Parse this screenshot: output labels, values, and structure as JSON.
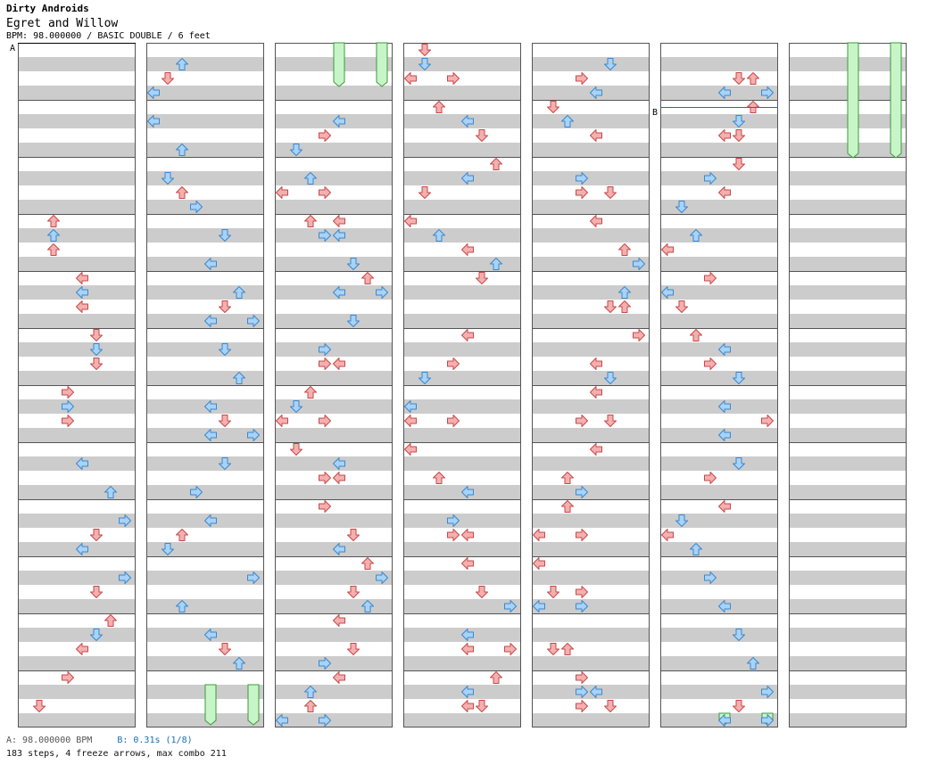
{
  "header": {
    "artist": "Dirty Androids",
    "title": "Egret and Willow",
    "info": "BPM: 98.000000 / BASIC DOUBLE / 6 feet"
  },
  "markers": [
    {
      "label": "A",
      "beat": 0,
      "color": "#000000"
    },
    {
      "label": "B",
      "beat": 244.5,
      "color": "#1a6fb0"
    }
  ],
  "footer": {
    "a_label": "A: 98.000000 BPM",
    "b_label": "B: 0.31s (1/8)",
    "stats": "183 steps, 4 freeze arrows, max combo 211"
  },
  "colors": {
    "note4": "#f4b0b0",
    "note4_stroke": "#c84848",
    "note8": "#a8d2f8",
    "note8_stroke": "#3a88cc",
    "freeze": "#c8f5c8",
    "freeze_stroke": "#3a9a3a",
    "band": "#cccccc",
    "border": "#555555"
  },
  "chart": {
    "columns": 7,
    "measures_per_column": 12,
    "beats_per_column": 48,
    "lanes": 8,
    "lane_icons": [
      "left-arrow-icon",
      "down-arrow-icon",
      "up-arrow-icon",
      "right-arrow-icon",
      "left-arrow-icon",
      "down-arrow-icon",
      "up-arrow-icon",
      "right-arrow-icon"
    ],
    "notes": [
      [
        0,
        2,
        12
      ],
      [
        0,
        2,
        13
      ],
      [
        0,
        2,
        14
      ],
      [
        0,
        4,
        16
      ],
      [
        0,
        4,
        17
      ],
      [
        0,
        4,
        18
      ],
      [
        0,
        5,
        20
      ],
      [
        0,
        5,
        21
      ],
      [
        0,
        5,
        22
      ],
      [
        0,
        3,
        24
      ],
      [
        0,
        3,
        25
      ],
      [
        0,
        3,
        26
      ],
      [
        0,
        4,
        29
      ],
      [
        0,
        6,
        31
      ],
      [
        0,
        7,
        33
      ],
      [
        0,
        5,
        34
      ],
      [
        0,
        4,
        35
      ],
      [
        0,
        7,
        37
      ],
      [
        0,
        5,
        38
      ],
      [
        0,
        6,
        40
      ],
      [
        0,
        5,
        41
      ],
      [
        0,
        4,
        42
      ],
      [
        0,
        3,
        44
      ],
      [
        0,
        1,
        46
      ],
      [
        1,
        2,
        1
      ],
      [
        1,
        1,
        2
      ],
      [
        1,
        0,
        3
      ],
      [
        1,
        0,
        5
      ],
      [
        1,
        2,
        7
      ],
      [
        1,
        1,
        9
      ],
      [
        1,
        2,
        10
      ],
      [
        1,
        3,
        11
      ],
      [
        1,
        5,
        13
      ],
      [
        1,
        4,
        15
      ],
      [
        1,
        6,
        17
      ],
      [
        1,
        5,
        18
      ],
      [
        1,
        4,
        19
      ],
      [
        1,
        7,
        19
      ],
      [
        1,
        5,
        21
      ],
      [
        1,
        6,
        23
      ],
      [
        1,
        4,
        25
      ],
      [
        1,
        5,
        26
      ],
      [
        1,
        4,
        27
      ],
      [
        1,
        7,
        27
      ],
      [
        1,
        5,
        29
      ],
      [
        1,
        3,
        31
      ],
      [
        1,
        4,
        33
      ],
      [
        1,
        2,
        34
      ],
      [
        1,
        1,
        35
      ],
      [
        1,
        7,
        37
      ],
      [
        1,
        2,
        39
      ],
      [
        1,
        4,
        41
      ],
      [
        1,
        5,
        42
      ],
      [
        1,
        6,
        43
      ],
      [
        2,
        4,
        5
      ],
      [
        2,
        3,
        6
      ],
      [
        2,
        1,
        7
      ],
      [
        2,
        2,
        9
      ],
      [
        2,
        0,
        10
      ],
      [
        2,
        3,
        10
      ],
      [
        2,
        2,
        12
      ],
      [
        2,
        4,
        12
      ],
      [
        2,
        3,
        13
      ],
      [
        2,
        4,
        13
      ],
      [
        2,
        5,
        15
      ],
      [
        2,
        6,
        16
      ],
      [
        2,
        4,
        17
      ],
      [
        2,
        7,
        17
      ],
      [
        2,
        5,
        19
      ],
      [
        2,
        3,
        21
      ],
      [
        2,
        3,
        22
      ],
      [
        2,
        4,
        22
      ],
      [
        2,
        2,
        24
      ],
      [
        2,
        1,
        25
      ],
      [
        2,
        0,
        26
      ],
      [
        2,
        3,
        26
      ],
      [
        2,
        1,
        28
      ],
      [
        2,
        4,
        29
      ],
      [
        2,
        3,
        30
      ],
      [
        2,
        4,
        30
      ],
      [
        2,
        3,
        32
      ],
      [
        2,
        5,
        34
      ],
      [
        2,
        4,
        35
      ],
      [
        2,
        6,
        36
      ],
      [
        2,
        7,
        37
      ],
      [
        2,
        5,
        38
      ],
      [
        2,
        6,
        39
      ],
      [
        2,
        4,
        40
      ],
      [
        2,
        5,
        42
      ],
      [
        2,
        3,
        43
      ],
      [
        2,
        4,
        44
      ],
      [
        2,
        2,
        45
      ],
      [
        2,
        2,
        46
      ],
      [
        2,
        0,
        47
      ],
      [
        2,
        3,
        47
      ],
      [
        3,
        1,
        0
      ],
      [
        3,
        1,
        1
      ],
      [
        3,
        0,
        2
      ],
      [
        3,
        3,
        2
      ],
      [
        3,
        2,
        4
      ],
      [
        3,
        4,
        5
      ],
      [
        3,
        5,
        6
      ],
      [
        3,
        6,
        8
      ],
      [
        3,
        4,
        9
      ],
      [
        3,
        1,
        10
      ],
      [
        3,
        0,
        12
      ],
      [
        3,
        2,
        13
      ],
      [
        3,
        4,
        14
      ],
      [
        3,
        6,
        15
      ],
      [
        3,
        5,
        16
      ],
      [
        3,
        4,
        20
      ],
      [
        3,
        3,
        22
      ],
      [
        3,
        1,
        23
      ],
      [
        3,
        0,
        25
      ],
      [
        3,
        0,
        26
      ],
      [
        3,
        3,
        26
      ],
      [
        3,
        0,
        28
      ],
      [
        3,
        2,
        30
      ],
      [
        3,
        4,
        31
      ],
      [
        3,
        3,
        33
      ],
      [
        3,
        3,
        34
      ],
      [
        3,
        4,
        34
      ],
      [
        3,
        4,
        36
      ],
      [
        3,
        5,
        38
      ],
      [
        3,
        7,
        39
      ],
      [
        3,
        4,
        41
      ],
      [
        3,
        4,
        42
      ],
      [
        3,
        7,
        42
      ],
      [
        3,
        6,
        44
      ],
      [
        3,
        4,
        45
      ],
      [
        3,
        4,
        46
      ],
      [
        3,
        5,
        46
      ],
      [
        4,
        5,
        1
      ],
      [
        4,
        3,
        2
      ],
      [
        4,
        4,
        3
      ],
      [
        4,
        1,
        4
      ],
      [
        4,
        2,
        5
      ],
      [
        4,
        4,
        6
      ],
      [
        4,
        3,
        9
      ],
      [
        4,
        3,
        10
      ],
      [
        4,
        5,
        10
      ],
      [
        4,
        4,
        12
      ],
      [
        4,
        6,
        14
      ],
      [
        4,
        7,
        15
      ],
      [
        4,
        6,
        17
      ],
      [
        4,
        5,
        18
      ],
      [
        4,
        6,
        18
      ],
      [
        4,
        7,
        20
      ],
      [
        4,
        4,
        22
      ],
      [
        4,
        5,
        23
      ],
      [
        4,
        4,
        24
      ],
      [
        4,
        3,
        26
      ],
      [
        4,
        5,
        26
      ],
      [
        4,
        4,
        28
      ],
      [
        4,
        2,
        30
      ],
      [
        4,
        3,
        31
      ],
      [
        4,
        2,
        32
      ],
      [
        4,
        0,
        34
      ],
      [
        4,
        3,
        34
      ],
      [
        4,
        0,
        36
      ],
      [
        4,
        1,
        38
      ],
      [
        4,
        3,
        38
      ],
      [
        4,
        0,
        39
      ],
      [
        4,
        3,
        39
      ],
      [
        4,
        1,
        42
      ],
      [
        4,
        2,
        42
      ],
      [
        4,
        3,
        44
      ],
      [
        4,
        3,
        45
      ],
      [
        4,
        4,
        45
      ],
      [
        4,
        3,
        46
      ],
      [
        4,
        5,
        46
      ],
      [
        5,
        5,
        2
      ],
      [
        5,
        6,
        2
      ],
      [
        5,
        4,
        3
      ],
      [
        5,
        7,
        3
      ],
      [
        5,
        6,
        4
      ],
      [
        5,
        5,
        5
      ],
      [
        5,
        4,
        6
      ],
      [
        5,
        5,
        6
      ],
      [
        5,
        5,
        8
      ],
      [
        5,
        3,
        9
      ],
      [
        5,
        4,
        10
      ],
      [
        5,
        1,
        11
      ],
      [
        5,
        2,
        13
      ],
      [
        5,
        0,
        14
      ],
      [
        5,
        3,
        16
      ],
      [
        5,
        0,
        17
      ],
      [
        5,
        1,
        18
      ],
      [
        5,
        2,
        20
      ],
      [
        5,
        4,
        21
      ],
      [
        5,
        3,
        22
      ],
      [
        5,
        5,
        23
      ],
      [
        5,
        4,
        25
      ],
      [
        5,
        7,
        26
      ],
      [
        5,
        4,
        27
      ],
      [
        5,
        5,
        29
      ],
      [
        5,
        3,
        30
      ],
      [
        5,
        4,
        32
      ],
      [
        5,
        1,
        33
      ],
      [
        5,
        0,
        34
      ],
      [
        5,
        2,
        35
      ],
      [
        5,
        3,
        37
      ],
      [
        5,
        4,
        39
      ],
      [
        5,
        5,
        41
      ],
      [
        5,
        6,
        43
      ],
      [
        5,
        7,
        45
      ],
      [
        5,
        5,
        46
      ],
      [
        5,
        4,
        47
      ],
      [
        5,
        7,
        47
      ]
    ],
    "freezes": [
      [
        2,
        4,
        0,
        2.75
      ],
      [
        2,
        7,
        0,
        2.75
      ],
      [
        6,
        4,
        0,
        7.75
      ],
      [
        6,
        7,
        0,
        7.75
      ],
      [
        1,
        4,
        45,
        47.5
      ],
      [
        1,
        7,
        45,
        47.5
      ],
      [
        5,
        4,
        47,
        47.5
      ],
      [
        5,
        7,
        47,
        47.5
      ]
    ]
  }
}
